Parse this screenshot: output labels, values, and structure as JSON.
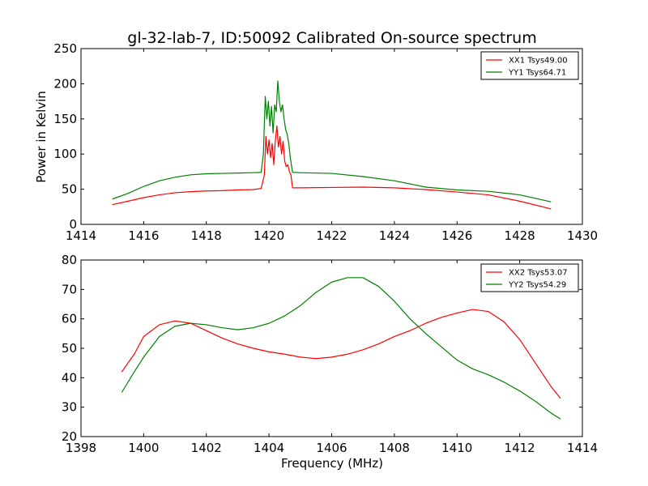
{
  "chart_data": [
    {
      "type": "line",
      "title": "gl-32-lab-7, ID:50092 Calibrated On-source spectrum",
      "xlabel": "",
      "ylabel": "Power in Kelvin",
      "xlim": [
        1414,
        1430
      ],
      "ylim": [
        0,
        250
      ],
      "xticks": [
        1414,
        1416,
        1418,
        1420,
        1422,
        1424,
        1426,
        1428,
        1430
      ],
      "yticks": [
        0,
        50,
        100,
        150,
        200,
        250
      ],
      "legend_position": "top-right",
      "grid": false,
      "series": [
        {
          "name": "XX1 Tsys49.00",
          "color": "#ff0000",
          "points": [
            [
              1415.0,
              28
            ],
            [
              1415.5,
              33
            ],
            [
              1416.0,
              38
            ],
            [
              1416.5,
              42
            ],
            [
              1417.0,
              45
            ],
            [
              1417.5,
              46.5
            ],
            [
              1418.0,
              47.5
            ],
            [
              1418.5,
              48
            ],
            [
              1419.0,
              49
            ],
            [
              1419.5,
              49.5
            ],
            [
              1419.75,
              51
            ],
            [
              1419.85,
              70
            ],
            [
              1419.9,
              125
            ],
            [
              1419.95,
              100
            ],
            [
              1420.0,
              120
            ],
            [
              1420.05,
              95
            ],
            [
              1420.1,
              115
            ],
            [
              1420.15,
              85
            ],
            [
              1420.2,
              118
            ],
            [
              1420.25,
              140
            ],
            [
              1420.3,
              110
            ],
            [
              1420.35,
              125
            ],
            [
              1420.4,
              100
            ],
            [
              1420.45,
              118
            ],
            [
              1420.5,
              90
            ],
            [
              1420.55,
              82
            ],
            [
              1420.6,
              85
            ],
            [
              1420.65,
              75
            ],
            [
              1420.7,
              70
            ],
            [
              1420.75,
              52
            ],
            [
              1421.0,
              52
            ],
            [
              1422.0,
              52.5
            ],
            [
              1423.0,
              53
            ],
            [
              1424.0,
              52
            ],
            [
              1425.0,
              49.5
            ],
            [
              1426.0,
              46
            ],
            [
              1427.0,
              42
            ],
            [
              1428.0,
              33
            ],
            [
              1429.0,
              22
            ]
          ]
        },
        {
          "name": "YY1 Tsys64.71",
          "color": "#008000",
          "points": [
            [
              1415.0,
              36
            ],
            [
              1415.5,
              44
            ],
            [
              1416.0,
              54
            ],
            [
              1416.5,
              62
            ],
            [
              1417.0,
              67
            ],
            [
              1417.5,
              70.5
            ],
            [
              1418.0,
              72
            ],
            [
              1418.5,
              72.5
            ],
            [
              1419.0,
              73
            ],
            [
              1419.5,
              73.5
            ],
            [
              1419.75,
              74
            ],
            [
              1419.82,
              100
            ],
            [
              1419.88,
              182
            ],
            [
              1419.93,
              150
            ],
            [
              1419.98,
              175
            ],
            [
              1420.03,
              140
            ],
            [
              1420.08,
              168
            ],
            [
              1420.13,
              130
            ],
            [
              1420.18,
              170
            ],
            [
              1420.23,
              160
            ],
            [
              1420.28,
              204
            ],
            [
              1420.33,
              175
            ],
            [
              1420.38,
              160
            ],
            [
              1420.43,
              170
            ],
            [
              1420.48,
              150
            ],
            [
              1420.53,
              135
            ],
            [
              1420.58,
              128
            ],
            [
              1420.63,
              115
            ],
            [
              1420.68,
              95
            ],
            [
              1420.75,
              74
            ],
            [
              1421.0,
              73.5
            ],
            [
              1422.0,
              72.5
            ],
            [
              1423.0,
              68
            ],
            [
              1424.0,
              62
            ],
            [
              1425.0,
              53
            ],
            [
              1426.0,
              49
            ],
            [
              1427.0,
              47
            ],
            [
              1428.0,
              42
            ],
            [
              1429.0,
              32
            ]
          ]
        }
      ]
    },
    {
      "type": "line",
      "title": "",
      "xlabel": "Frequency (MHz)",
      "ylabel": "",
      "xlim": [
        1398,
        1414
      ],
      "ylim": [
        20,
        80
      ],
      "xticks": [
        1398,
        1400,
        1402,
        1404,
        1406,
        1408,
        1410,
        1412,
        1414
      ],
      "yticks": [
        20,
        30,
        40,
        50,
        60,
        70,
        80
      ],
      "legend_position": "top-right",
      "grid": false,
      "series": [
        {
          "name": "XX2 Tsys53.07",
          "color": "#ff0000",
          "points": [
            [
              1399.3,
              42
            ],
            [
              1399.7,
              48
            ],
            [
              1400.0,
              54
            ],
            [
              1400.5,
              58
            ],
            [
              1401.0,
              59.3
            ],
            [
              1401.5,
              58.5
            ],
            [
              1402.0,
              56
            ],
            [
              1402.5,
              53.5
            ],
            [
              1403.0,
              51.5
            ],
            [
              1403.5,
              50
            ],
            [
              1404.0,
              48.8
            ],
            [
              1404.5,
              48
            ],
            [
              1405.0,
              47
            ],
            [
              1405.5,
              46.5
            ],
            [
              1406.0,
              47
            ],
            [
              1406.5,
              48
            ],
            [
              1407.0,
              49.5
            ],
            [
              1407.5,
              51.5
            ],
            [
              1408.0,
              54
            ],
            [
              1408.5,
              56
            ],
            [
              1409.0,
              58.5
            ],
            [
              1409.5,
              60.5
            ],
            [
              1410.0,
              62
            ],
            [
              1410.5,
              63.2
            ],
            [
              1411.0,
              62.5
            ],
            [
              1411.5,
              59
            ],
            [
              1412.0,
              53
            ],
            [
              1412.5,
              45
            ],
            [
              1413.0,
              37
            ],
            [
              1413.3,
              33
            ]
          ]
        },
        {
          "name": "YY2 Tsys54.29",
          "color": "#008000",
          "points": [
            [
              1399.3,
              35
            ],
            [
              1399.7,
              42
            ],
            [
              1400.0,
              47
            ],
            [
              1400.5,
              54
            ],
            [
              1401.0,
              57.5
            ],
            [
              1401.5,
              58.5
            ],
            [
              1402.0,
              58
            ],
            [
              1402.5,
              57
            ],
            [
              1403.0,
              56.3
            ],
            [
              1403.5,
              57
            ],
            [
              1404.0,
              58.5
            ],
            [
              1404.5,
              61
            ],
            [
              1405.0,
              64.5
            ],
            [
              1405.5,
              69
            ],
            [
              1406.0,
              72.5
            ],
            [
              1406.5,
              74
            ],
            [
              1407.0,
              74
            ],
            [
              1407.5,
              71
            ],
            [
              1408.0,
              66
            ],
            [
              1408.5,
              60
            ],
            [
              1409.0,
              55
            ],
            [
              1409.5,
              50.5
            ],
            [
              1410.0,
              46
            ],
            [
              1410.5,
              43
            ],
            [
              1411.0,
              41
            ],
            [
              1411.5,
              38.5
            ],
            [
              1412.0,
              35.5
            ],
            [
              1412.5,
              32
            ],
            [
              1413.0,
              28
            ],
            [
              1413.3,
              26
            ]
          ]
        }
      ]
    }
  ]
}
